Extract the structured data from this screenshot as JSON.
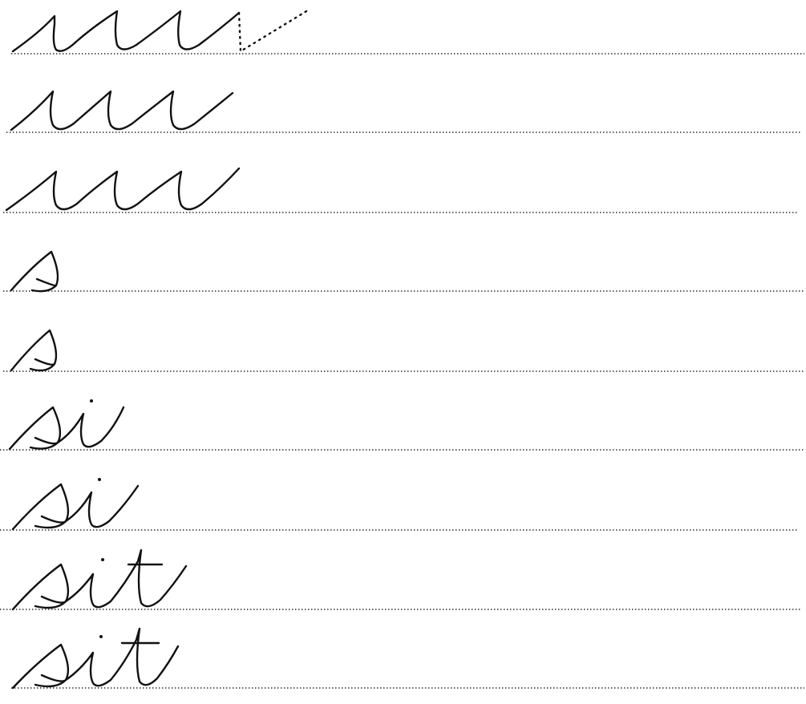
{
  "worksheet": {
    "rows": [
      {
        "text": "uuu",
        "traced_tail": true
      },
      {
        "text": "uuu"
      },
      {
        "text": "uuu"
      },
      {
        "text": "s"
      },
      {
        "text": "s"
      },
      {
        "text": "si"
      },
      {
        "text": "si"
      },
      {
        "text": "sit"
      },
      {
        "text": "sit"
      }
    ]
  }
}
